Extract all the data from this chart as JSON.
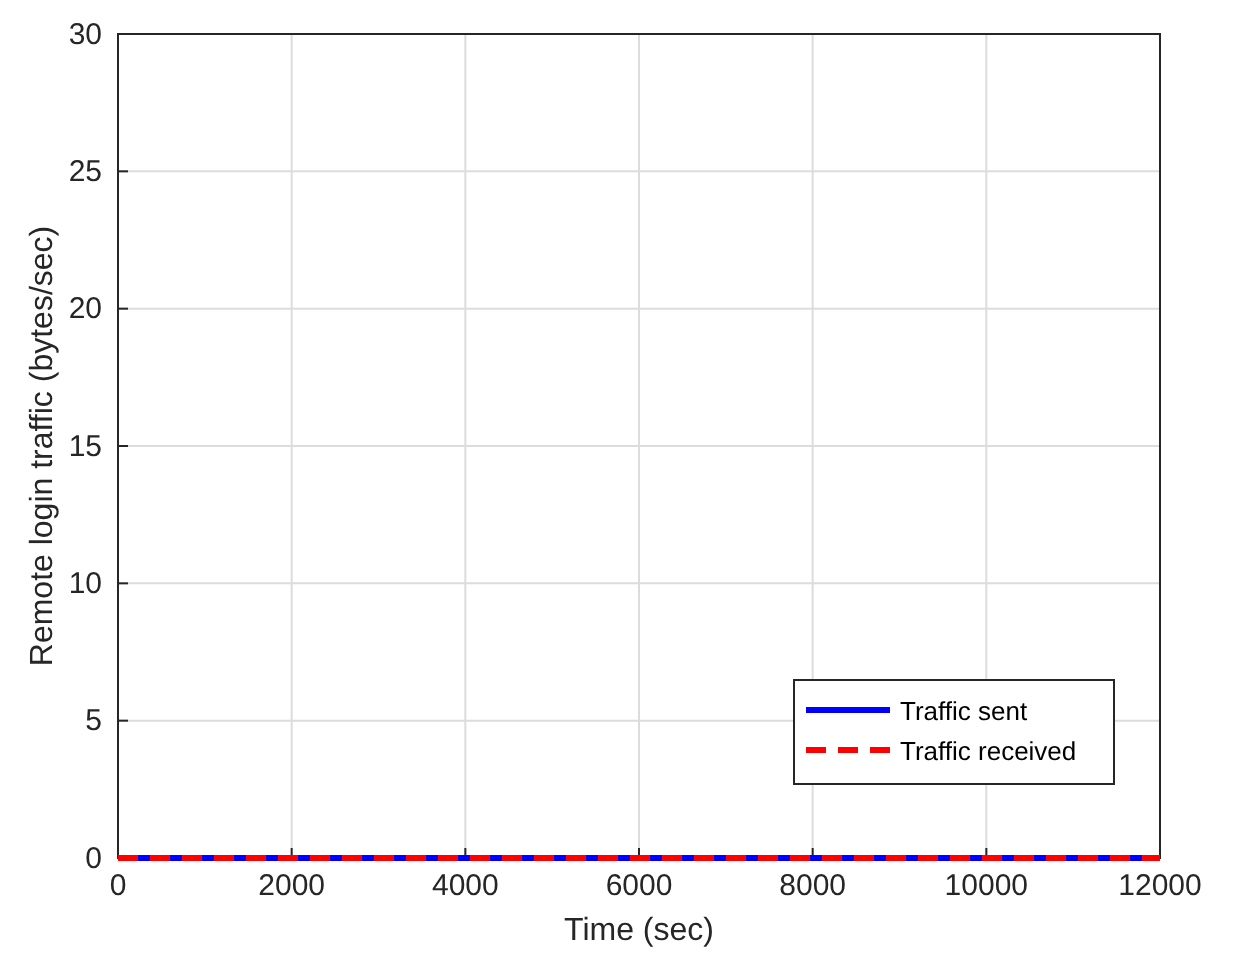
{
  "chart_data": {
    "type": "line",
    "xlabel": "Time (sec)",
    "ylabel": "Remote login traffic (bytes/sec)",
    "x": [
      0,
      12000
    ],
    "series": [
      {
        "name": "Traffic sent",
        "color": "#0000ff",
        "values": [
          0,
          0
        ],
        "line_style": "solid"
      },
      {
        "name": "Traffic received",
        "color": "#ff0000",
        "values": [
          0,
          0
        ],
        "line_style": "dashed"
      }
    ],
    "xlim": [
      0,
      12000
    ],
    "xticks": [
      0,
      2000,
      4000,
      6000,
      8000,
      10000,
      12000
    ],
    "ylim": [
      0,
      30
    ],
    "yticks": [
      0,
      5,
      10,
      15,
      20,
      25,
      30
    ],
    "grid": true,
    "legend": "bottom right"
  }
}
